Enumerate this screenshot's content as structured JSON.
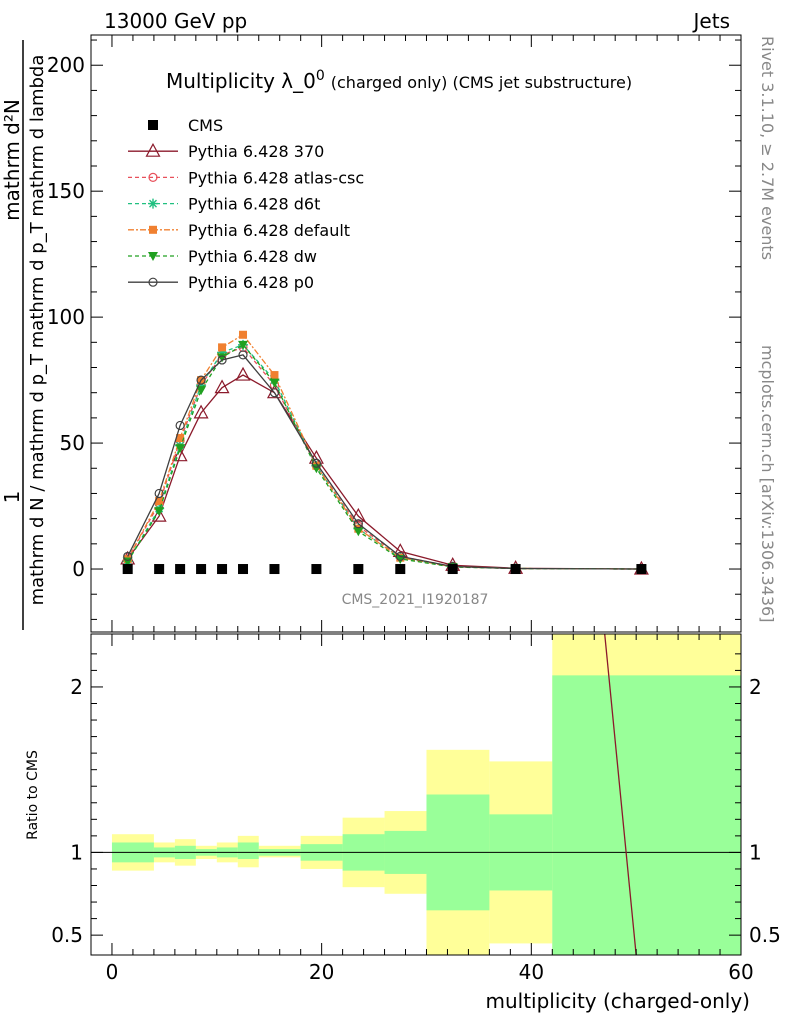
{
  "header": {
    "energy_label": "13000 GeV pp",
    "category_label": "Jets"
  },
  "side_text": {
    "rivet": "Rivet 3.1.10, ≥ 2.7M events",
    "mcplots": "mcplots.cern.ch [arXiv:1306.3436]"
  },
  "chart_data": [
    {
      "type": "line",
      "panel": "main",
      "title_main": "Multiplicity λ_0",
      "title_sup": "0",
      "title_suffix": "(charged only) (CMS jet substructure)",
      "ylabel_numerator": "mathrm d²N",
      "ylabel_denominator": "mathrm d N / mathrm d p_T mathrm d p_T mathrm d lambda",
      "ylabel_one": "1",
      "analysis_label": "CMS_2021_I1920187",
      "xlim": [
        -2,
        60
      ],
      "ylim": [
        -25,
        212
      ],
      "yticks": [
        0,
        50,
        100,
        150,
        200
      ],
      "legend_position": "top-left",
      "x": [
        1.5,
        4.5,
        6.5,
        8.5,
        10.5,
        12.5,
        15.5,
        19.5,
        23.5,
        27.5,
        32.5,
        38.5,
        50.5
      ],
      "series": [
        {
          "name": "CMS",
          "color": "#000000",
          "marker": "square",
          "dash": "none",
          "values": [
            0,
            0,
            0,
            0,
            0,
            0,
            0,
            0,
            0,
            0,
            0,
            0,
            0
          ]
        },
        {
          "name": "Pythia 6.428 370",
          "color": "#8b1a2b",
          "marker": "triangle-open",
          "dash": "none",
          "values": [
            4,
            21,
            45,
            62,
            72,
            77,
            70,
            44,
            21,
            7,
            1.5,
            0.3,
            0
          ]
        },
        {
          "name": "Pythia 6.428 atlas-csc",
          "color": "#e8505b",
          "marker": "circle-open",
          "dash": "4,3",
          "values": [
            4,
            26,
            51,
            73,
            85,
            88,
            73,
            41,
            17,
            5,
            1,
            0.2,
            0
          ]
        },
        {
          "name": "Pythia 6.428 d6t",
          "color": "#20c080",
          "marker": "star",
          "dash": "4,3",
          "values": [
            3,
            24,
            49,
            73,
            86,
            89,
            75,
            41,
            16,
            4.5,
            0.9,
            0.2,
            0
          ]
        },
        {
          "name": "Pythia 6.428 default",
          "color": "#f08030",
          "marker": "square-filled",
          "dash": "6,2,2,2",
          "values": [
            4,
            27,
            52,
            75,
            88,
            93,
            77,
            41,
            16,
            4.5,
            0.9,
            0.2,
            0
          ]
        },
        {
          "name": "Pythia 6.428 dw",
          "color": "#20a020",
          "marker": "triangle-down",
          "dash": "4,3",
          "values": [
            3,
            23,
            48,
            71,
            84,
            89,
            74,
            40,
            15,
            4,
            0.8,
            0.2,
            0
          ]
        },
        {
          "name": "Pythia 6.428 p0",
          "color": "#404040",
          "marker": "circle-open",
          "dash": "none",
          "values": [
            5,
            30,
            57,
            75,
            83,
            85,
            70,
            42,
            18,
            5,
            1,
            0.2,
            0
          ]
        }
      ]
    },
    {
      "type": "area",
      "panel": "ratio",
      "ylabel": "Ratio to CMS",
      "xlabel": "multiplicity (charged-only)",
      "xlim": [
        -2,
        60
      ],
      "ylim": [
        0.38,
        2.32
      ],
      "yticks": [
        0.5,
        1,
        2
      ],
      "ytick_labels": [
        "0.5",
        "1",
        "2"
      ],
      "xticks": [
        0,
        20,
        40,
        60
      ],
      "bins": [
        {
          "lo": 0,
          "hi": 4,
          "stat_lo": 0.94,
          "stat_hi": 1.06,
          "tot_lo": 0.89,
          "tot_hi": 1.11
        },
        {
          "lo": 4,
          "hi": 6,
          "stat_lo": 0.97,
          "stat_hi": 1.03,
          "tot_lo": 0.94,
          "tot_hi": 1.06
        },
        {
          "lo": 6,
          "hi": 8,
          "stat_lo": 0.96,
          "stat_hi": 1.04,
          "tot_lo": 0.92,
          "tot_hi": 1.08
        },
        {
          "lo": 8,
          "hi": 10,
          "stat_lo": 0.98,
          "stat_hi": 1.02,
          "tot_lo": 0.96,
          "tot_hi": 1.04
        },
        {
          "lo": 10,
          "hi": 12,
          "stat_lo": 0.97,
          "stat_hi": 1.03,
          "tot_lo": 0.94,
          "tot_hi": 1.06
        },
        {
          "lo": 12,
          "hi": 14,
          "stat_lo": 0.96,
          "stat_hi": 1.06,
          "tot_lo": 0.91,
          "tot_hi": 1.1
        },
        {
          "lo": 14,
          "hi": 18,
          "stat_lo": 0.98,
          "stat_hi": 1.02,
          "tot_lo": 0.97,
          "tot_hi": 1.04
        },
        {
          "lo": 18,
          "hi": 22,
          "stat_lo": 0.95,
          "stat_hi": 1.05,
          "tot_lo": 0.9,
          "tot_hi": 1.1
        },
        {
          "lo": 22,
          "hi": 26,
          "stat_lo": 0.89,
          "stat_hi": 1.11,
          "tot_lo": 0.79,
          "tot_hi": 1.21
        },
        {
          "lo": 26,
          "hi": 30,
          "stat_lo": 0.87,
          "stat_hi": 1.13,
          "tot_lo": 0.75,
          "tot_hi": 1.25
        },
        {
          "lo": 30,
          "hi": 36,
          "stat_lo": 0.65,
          "stat_hi": 1.35,
          "tot_lo": 0.38,
          "tot_hi": 1.62
        },
        {
          "lo": 36,
          "hi": 42,
          "stat_lo": 0.77,
          "stat_hi": 1.23,
          "tot_lo": 0.45,
          "tot_hi": 1.55
        },
        {
          "lo": 42,
          "hi": 60,
          "stat_lo": 0.38,
          "stat_hi": 2.07,
          "tot_lo": 0.38,
          "tot_hi": 2.32
        }
      ],
      "stat_color": "#99ff99",
      "tot_color": "#ffff99",
      "ratio_line": {
        "x": [
          47,
          50
        ],
        "y": [
          2.32,
          0.38
        ],
        "color": "#8b1a2b"
      }
    }
  ]
}
